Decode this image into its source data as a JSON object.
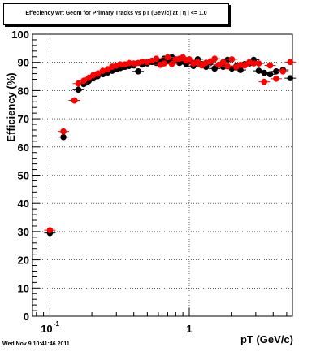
{
  "chart_data": {
    "type": "scatter",
    "title": "Effeciency wrt Geom for Primary Tracks vs pT (GeV/c) at | η | <= 1.0",
    "xlabel": "pT (GeV/c)",
    "ylabel": "Efficiency (%)",
    "x_scale": "log",
    "xlim": [
      0.075,
      5.5
    ],
    "ylim": [
      0,
      100
    ],
    "x_tick_labels": [
      "10",
      "-1",
      "1"
    ],
    "y_tick_labels": [
      "0",
      "10",
      "20",
      "30",
      "40",
      "50",
      "60",
      "70",
      "80",
      "90",
      "100"
    ],
    "grid": true,
    "colors": {
      "black": "#000000",
      "red": "#ff0000"
    },
    "series": [
      {
        "color": "black",
        "points": [
          [
            0.1,
            29.5
          ],
          [
            0.125,
            63.5
          ],
          [
            0.15,
            76.5
          ],
          [
            0.16,
            80.3
          ],
          [
            0.175,
            82.3
          ],
          [
            0.19,
            83.4
          ],
          [
            0.205,
            84.3
          ],
          [
            0.22,
            85.1
          ],
          [
            0.24,
            85.8
          ],
          [
            0.26,
            86.4
          ],
          [
            0.28,
            87.0
          ],
          [
            0.3,
            87.5
          ],
          [
            0.32,
            88.0
          ],
          [
            0.345,
            88.4
          ],
          [
            0.37,
            88.7
          ],
          [
            0.4,
            88.9
          ],
          [
            0.43,
            86.8
          ],
          [
            0.46,
            89.2
          ],
          [
            0.5,
            89.6
          ],
          [
            0.54,
            90.1
          ],
          [
            0.58,
            89.8
          ],
          [
            0.62,
            90.2
          ],
          [
            0.66,
            91.3
          ],
          [
            0.7,
            90.6
          ],
          [
            0.75,
            91.8
          ],
          [
            0.8,
            90.9
          ],
          [
            0.85,
            89.8
          ],
          [
            0.9,
            90.3
          ],
          [
            0.95,
            89.4
          ],
          [
            1.0,
            90.6
          ],
          [
            1.07,
            88.7
          ],
          [
            1.15,
            91.1
          ],
          [
            1.23,
            89.4
          ],
          [
            1.32,
            88.4
          ],
          [
            1.42,
            89.9
          ],
          [
            1.52,
            87.8
          ],
          [
            1.63,
            89.1
          ],
          [
            1.75,
            88.4
          ],
          [
            1.88,
            90.9
          ],
          [
            2.02,
            87.8
          ],
          [
            2.17,
            88.6
          ],
          [
            2.33,
            87.3
          ],
          [
            2.5,
            89.4
          ],
          [
            2.7,
            89.6
          ],
          [
            2.9,
            90.9
          ],
          [
            3.15,
            87.0
          ],
          [
            3.45,
            86.3
          ],
          [
            3.8,
            85.8
          ],
          [
            4.2,
            86.8
          ],
          [
            4.7,
            87.3
          ],
          [
            5.3,
            84.4
          ]
        ]
      },
      {
        "color": "red",
        "points": [
          [
            0.1,
            30.5
          ],
          [
            0.125,
            65.5
          ],
          [
            0.15,
            76.5
          ],
          [
            0.16,
            82.5
          ],
          [
            0.175,
            83.5
          ],
          [
            0.19,
            84.5
          ],
          [
            0.205,
            85.5
          ],
          [
            0.22,
            86.0
          ],
          [
            0.24,
            87.0
          ],
          [
            0.26,
            87.5
          ],
          [
            0.28,
            88.5
          ],
          [
            0.3,
            88.8
          ],
          [
            0.32,
            89.3
          ],
          [
            0.345,
            89.3
          ],
          [
            0.37,
            89.8
          ],
          [
            0.4,
            89.6
          ],
          [
            0.43,
            89.8
          ],
          [
            0.46,
            90.3
          ],
          [
            0.5,
            90.1
          ],
          [
            0.54,
            90.6
          ],
          [
            0.58,
            91.3
          ],
          [
            0.62,
            89.1
          ],
          [
            0.66,
            89.6
          ],
          [
            0.7,
            91.8
          ],
          [
            0.75,
            89.4
          ],
          [
            0.8,
            91.1
          ],
          [
            0.85,
            91.3
          ],
          [
            0.9,
            91.8
          ],
          [
            0.95,
            90.6
          ],
          [
            1.0,
            91.1
          ],
          [
            1.07,
            89.6
          ],
          [
            1.15,
            90.1
          ],
          [
            1.23,
            88.9
          ],
          [
            1.32,
            89.9
          ],
          [
            1.42,
            90.3
          ],
          [
            1.52,
            91.3
          ],
          [
            1.63,
            89.1
          ],
          [
            1.75,
            90.1
          ],
          [
            1.88,
            88.6
          ],
          [
            2.02,
            91.1
          ],
          [
            2.17,
            88.4
          ],
          [
            2.33,
            89.1
          ],
          [
            2.5,
            88.9
          ],
          [
            2.7,
            90.1
          ],
          [
            2.9,
            89.6
          ],
          [
            3.15,
            89.6
          ],
          [
            3.45,
            83.1
          ],
          [
            3.8,
            88.9
          ],
          [
            4.2,
            84.2
          ],
          [
            4.7,
            86.8
          ],
          [
            5.3,
            90.1
          ]
        ]
      }
    ]
  },
  "timestamp": "Wed Nov  9 10:41:46 2011"
}
